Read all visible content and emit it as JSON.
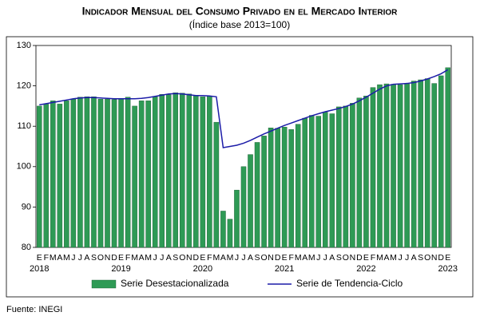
{
  "chart_data": {
    "type": "bar_line",
    "title": "Indicador Mensual del Consumo Privado en el Mercado Interior",
    "subtitle": "(Índice base 2013=100)",
    "source": "Fuente: INEGI",
    "categories": [
      "E",
      "F",
      "M",
      "A",
      "M",
      "J",
      "J",
      "A",
      "S",
      "O",
      "N",
      "D",
      "E",
      "F",
      "M",
      "A",
      "M",
      "J",
      "J",
      "A",
      "S",
      "O",
      "N",
      "D",
      "E",
      "F",
      "M",
      "A",
      "M",
      "J",
      "J",
      "A",
      "S",
      "O",
      "N",
      "D",
      "E",
      "F",
      "M",
      "A",
      "M",
      "J",
      "J",
      "A",
      "S",
      "O",
      "N",
      "D",
      "E",
      "F",
      "M",
      "A",
      "M",
      "J",
      "J",
      "A",
      "S",
      "O",
      "N",
      "D",
      "E"
    ],
    "years": [
      "2018",
      "2019",
      "2020",
      "2021",
      "2022",
      "2023"
    ],
    "ylim": [
      80,
      130
    ],
    "yticks": [
      80,
      90,
      100,
      110,
      120,
      130
    ],
    "grid": false,
    "series": [
      {
        "name": "Serie Desestacionalizada",
        "color": "#2e9a55",
        "kind": "bar",
        "values": [
          115,
          115.5,
          116.3,
          115.5,
          116.3,
          116.7,
          117.2,
          117.3,
          117.3,
          116.7,
          116.7,
          116.6,
          116.8,
          117.2,
          115,
          116.3,
          116.3,
          117.3,
          117.9,
          117.8,
          118.3,
          118.2,
          118,
          117.7,
          117.3,
          117.5,
          111,
          89,
          87,
          94.2,
          100,
          103,
          106,
          107.6,
          109.6,
          109.5,
          109.8,
          109.2,
          110.5,
          112,
          112.7,
          112.5,
          113.5,
          113.1,
          114.8,
          115,
          115.7,
          117,
          117.5,
          119.6,
          120.3,
          120.5,
          120.4,
          120.3,
          120.5,
          121.2,
          121.5,
          121.8,
          120.6,
          122.5,
          124.5
        ]
      },
      {
        "name": "Serie de Tendencia-Ciclo",
        "color": "#1c1ca8",
        "kind": "line",
        "values": [
          115.3,
          115.6,
          115.9,
          116.2,
          116.5,
          116.8,
          117,
          117.1,
          117.1,
          117,
          116.9,
          116.8,
          116.8,
          116.8,
          116.8,
          116.9,
          117.1,
          117.4,
          117.7,
          118,
          118.1,
          118,
          117.8,
          117.6,
          117.6,
          117.5,
          117.3,
          104.7,
          105,
          105.3,
          105.8,
          106.5,
          107.3,
          108.1,
          108.8,
          109.5,
          110.2,
          110.8,
          111.4,
          112,
          112.6,
          113.1,
          113.6,
          114,
          114.4,
          114.9,
          115.5,
          116.3,
          117.2,
          118.2,
          119.2,
          120,
          120.4,
          120.5,
          120.6,
          120.8,
          121.2,
          121.7,
          122.3,
          123,
          124
        ]
      }
    ]
  }
}
